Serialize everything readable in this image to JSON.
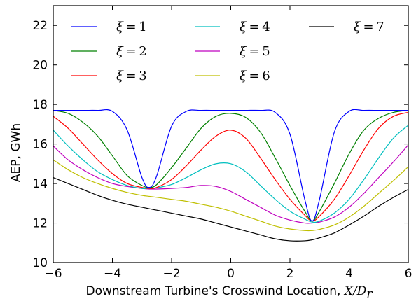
{
  "chart_data": {
    "type": "line",
    "title": "",
    "xlabel": "Downstream Turbine's Crosswind Location, ",
    "xlabel_math": "X/D",
    "xlabel_math_sub": "r",
    "ylabel": "AEP, GWh",
    "xlim": [
      -6,
      6
    ],
    "ylim": [
      10,
      23
    ],
    "xticks": [
      -6,
      -4,
      -2,
      0,
      2,
      4,
      6
    ],
    "xtick_labels": [
      "−6",
      "−4",
      "−2",
      "0",
      "2",
      "4",
      "6"
    ],
    "yticks": [
      10,
      12,
      14,
      16,
      18,
      20,
      22
    ],
    "ytick_labels": [
      "10",
      "12",
      "14",
      "16",
      "18",
      "20",
      "22"
    ],
    "grid": false,
    "legend_position": "top",
    "x": [
      -6,
      -5.5,
      -5,
      -4.5,
      -4,
      -3.5,
      -3,
      -2.75,
      -2.5,
      -2,
      -1.5,
      -1,
      -0.5,
      0,
      0.5,
      1,
      1.5,
      2,
      2.5,
      2.75,
      3,
      3.5,
      4,
      4.5,
      5,
      5.5,
      6
    ],
    "series": [
      {
        "name": "ξ = 1",
        "xi": "ξ",
        "eq": "=",
        "num": "1",
        "color": "#0000ff",
        "values": [
          17.7,
          17.7,
          17.7,
          17.7,
          17.65,
          16.7,
          14.3,
          13.8,
          14.4,
          16.9,
          17.65,
          17.7,
          17.7,
          17.7,
          17.7,
          17.7,
          17.6,
          16.5,
          13.2,
          12.1,
          13.2,
          16.6,
          17.65,
          17.7,
          17.7,
          17.7,
          17.7
        ]
      },
      {
        "name": "ξ = 2",
        "xi": "ξ",
        "eq": "=",
        "num": "2",
        "color": "#008000",
        "values": [
          17.7,
          17.55,
          17.1,
          16.4,
          15.4,
          14.4,
          13.9,
          13.8,
          13.95,
          14.8,
          15.8,
          16.8,
          17.4,
          17.55,
          17.35,
          16.6,
          15.3,
          13.9,
          12.6,
          12.1,
          12.6,
          14.0,
          15.5,
          16.7,
          17.3,
          17.6,
          17.7
        ]
      },
      {
        "name": "ξ = 3",
        "xi": "ξ",
        "eq": "=",
        "num": "3",
        "color": "#ff0000",
        "values": [
          17.4,
          16.8,
          16.0,
          15.2,
          14.5,
          14.0,
          13.8,
          13.75,
          13.8,
          14.2,
          14.9,
          15.7,
          16.4,
          16.7,
          16.3,
          15.3,
          14.2,
          13.2,
          12.4,
          12.1,
          12.35,
          13.2,
          14.4,
          15.7,
          16.8,
          17.4,
          17.6
        ]
      },
      {
        "name": "ξ = 4",
        "xi": "ξ",
        "eq": "=",
        "num": "4",
        "color": "#00bfbf",
        "values": [
          16.7,
          15.9,
          15.2,
          14.6,
          14.2,
          13.9,
          13.75,
          13.75,
          13.78,
          13.95,
          14.3,
          14.7,
          15.0,
          15.0,
          14.6,
          13.9,
          13.2,
          12.6,
          12.2,
          12.05,
          12.1,
          12.5,
          13.2,
          14.2,
          15.3,
          16.3,
          16.95
        ]
      },
      {
        "name": "ξ = 5",
        "xi": "ξ",
        "eq": "=",
        "num": "5",
        "color": "#bf00bf",
        "values": [
          15.9,
          15.2,
          14.7,
          14.3,
          14.0,
          13.85,
          13.75,
          13.72,
          13.72,
          13.75,
          13.8,
          13.9,
          13.85,
          13.6,
          13.2,
          12.8,
          12.4,
          12.15,
          12.0,
          12.0,
          12.05,
          12.3,
          12.8,
          13.5,
          14.3,
          15.1,
          15.95
        ]
      },
      {
        "name": "ξ = 6",
        "xi": "ξ",
        "eq": "=",
        "num": "6",
        "color": "#bfbf00",
        "values": [
          15.2,
          14.7,
          14.3,
          14.0,
          13.75,
          13.55,
          13.4,
          13.35,
          13.3,
          13.2,
          13.1,
          12.95,
          12.8,
          12.6,
          12.35,
          12.1,
          11.85,
          11.7,
          11.62,
          11.62,
          11.68,
          11.9,
          12.3,
          12.85,
          13.5,
          14.15,
          14.85
        ]
      },
      {
        "name": "ξ = 7",
        "xi": "ξ",
        "eq": "=",
        "num": "7",
        "color": "#000000",
        "values": [
          14.3,
          14.0,
          13.7,
          13.4,
          13.15,
          12.95,
          12.8,
          12.72,
          12.65,
          12.5,
          12.35,
          12.2,
          12.0,
          11.8,
          11.6,
          11.4,
          11.2,
          11.1,
          11.1,
          11.15,
          11.25,
          11.5,
          11.9,
          12.35,
          12.85,
          13.3,
          13.7
        ]
      }
    ]
  }
}
